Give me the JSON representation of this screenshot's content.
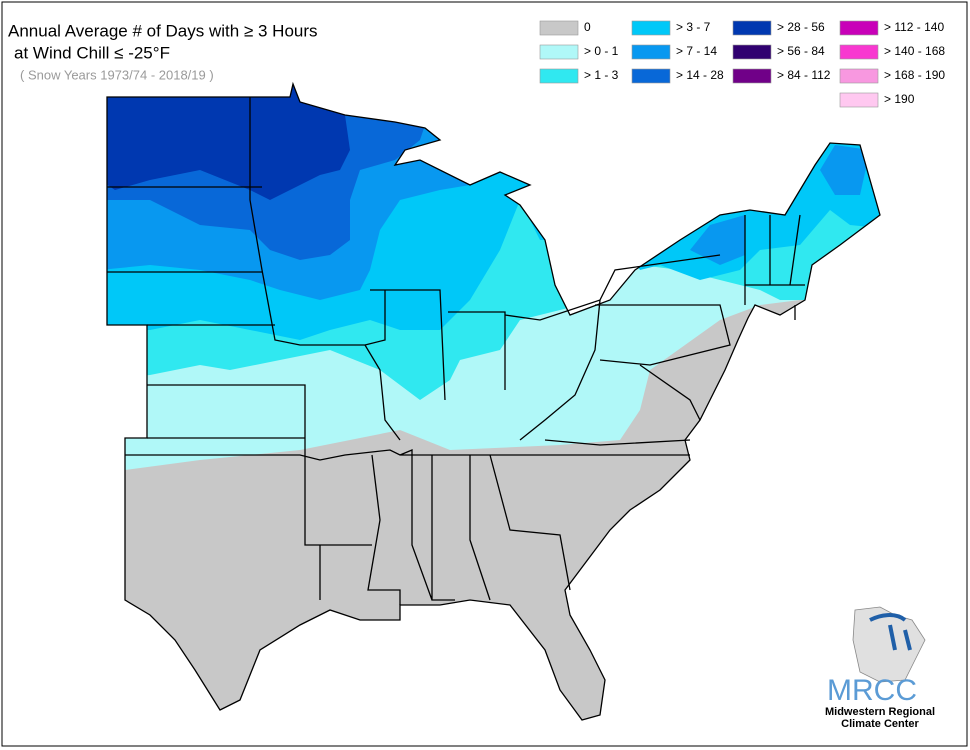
{
  "header": {
    "title_line1": "Annual Average # of Days with ≥ 3 Hours",
    "title_line2": "at Wind Chill ≤ -25°F",
    "subtitle": "( Snow Years 1973/74 - 2018/19 )"
  },
  "legend": [
    {
      "label": "0",
      "color": "#c8c8c8"
    },
    {
      "label": "> 0 - 1",
      "color": "#b0f8f8"
    },
    {
      "label": "> 1 - 3",
      "color": "#30e8f0"
    },
    {
      "label": "> 3 - 7",
      "color": "#00c8f8"
    },
    {
      "label": "> 7 - 14",
      "color": "#0898f0"
    },
    {
      "label": "> 14 - 28",
      "color": "#0868d8"
    },
    {
      "label": "> 28 - 56",
      "color": "#0038b0"
    },
    {
      "label": "> 56 - 84",
      "color": "#300070"
    },
    {
      "label": "> 84 - 112",
      "color": "#700088"
    },
    {
      "label": "> 112 - 140",
      "color": "#c800b8"
    },
    {
      "label": "> 140 - 168",
      "color": "#f838d0"
    },
    {
      "label": "> 168 - 190",
      "color": "#f898e0"
    },
    {
      "label": "> 190",
      "color": "#ffc8f0"
    }
  ],
  "logo": {
    "name": "MRCC",
    "line1": "Midwestern Regional",
    "line2": "Climate Center"
  }
}
